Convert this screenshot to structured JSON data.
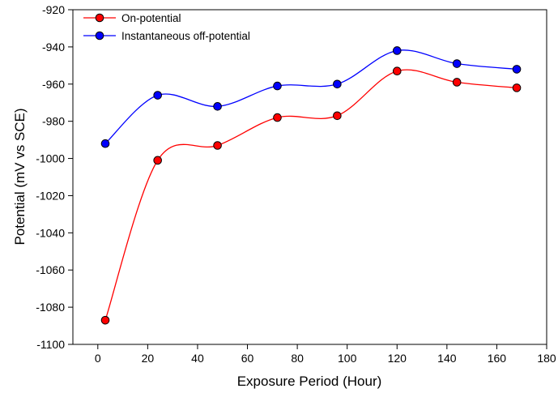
{
  "chart_data": {
    "type": "line",
    "title": "",
    "xlabel": "Exposure Period (Hour)",
    "ylabel": "Potential (mV vs SCE)",
    "xlim": [
      -10,
      180
    ],
    "ylim": [
      -1100,
      -920
    ],
    "x_ticks": [
      0,
      20,
      40,
      60,
      80,
      100,
      120,
      140,
      160,
      180
    ],
    "y_ticks": [
      -920,
      -940,
      -960,
      -980,
      -1000,
      -1020,
      -1040,
      -1060,
      -1080,
      -1100
    ],
    "x_tick_labels": [
      "0",
      "20",
      "40",
      "60",
      "80",
      "100",
      "120",
      "140",
      "160",
      "180"
    ],
    "y_tick_labels": [
      "-920",
      "-940",
      "-960",
      "-980",
      "-1000",
      "-1020",
      "-1040",
      "-1060",
      "-1080",
      "-1100"
    ],
    "grid": false,
    "smooth": true,
    "legend_position": "top-left",
    "x": [
      3,
      24,
      48,
      72,
      96,
      120,
      144,
      168
    ],
    "series": [
      {
        "name": "On-potential",
        "color": "#ff0000",
        "values": [
          -1087,
          -1001,
          -993,
          -978,
          -977,
          -953,
          -959,
          -962
        ]
      },
      {
        "name": "Instantaneous off-potential",
        "color": "#0000ff",
        "values": [
          -992,
          -966,
          -972,
          -961,
          -960,
          -942,
          -949,
          -952
        ]
      }
    ]
  }
}
